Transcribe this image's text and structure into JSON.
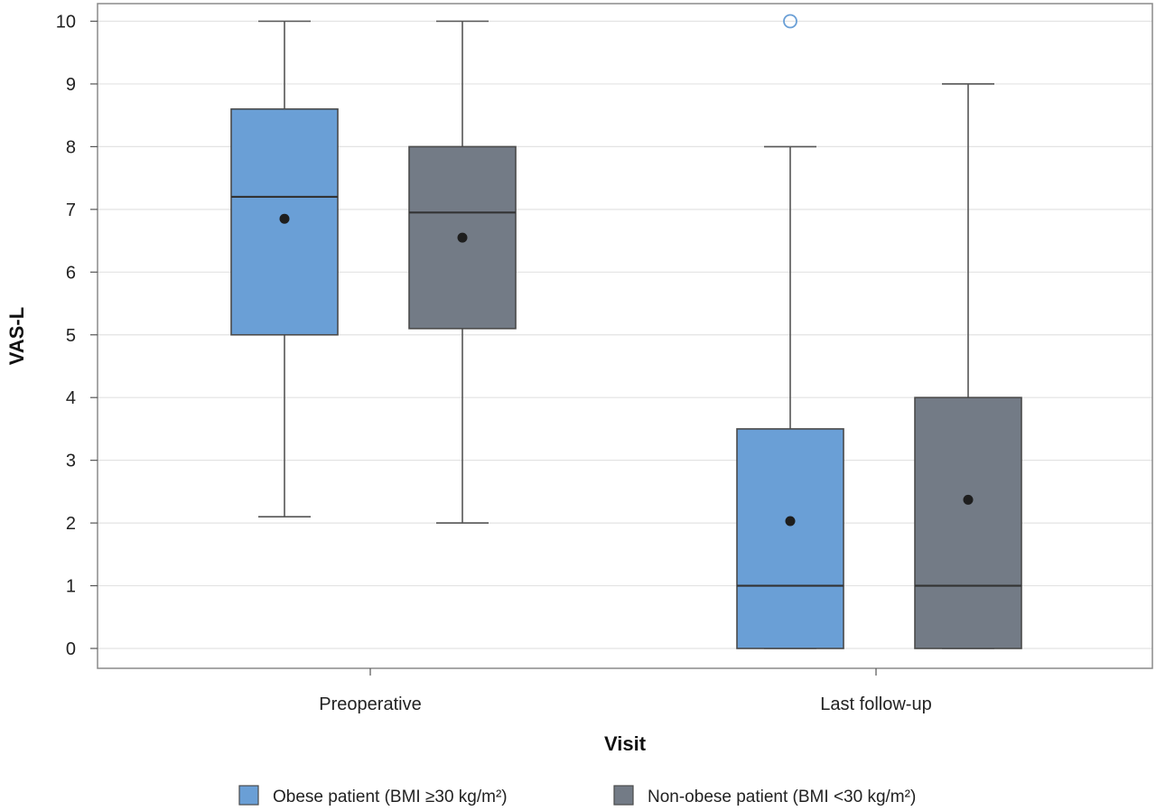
{
  "chart_data": {
    "type": "boxplot",
    "xlabel": "Visit",
    "ylabel": "VAS-L",
    "categories": [
      "Preoperative",
      "Last follow-up"
    ],
    "ylim": [
      0,
      10
    ],
    "yticks": [
      0,
      1,
      2,
      3,
      4,
      5,
      6,
      7,
      8,
      9,
      10
    ],
    "grid": true,
    "legend_placement": "bottom",
    "series": [
      {
        "name": "Obese patient (BMI ≥30 kg/m²)",
        "color": "#6a9fd6",
        "boxes": [
          {
            "category": "Preoperative",
            "min": 2.1,
            "q1": 5.0,
            "median": 7.2,
            "q3": 8.6,
            "max": 10,
            "mean": 6.85,
            "outliers": []
          },
          {
            "category": "Last follow-up",
            "min": 0,
            "q1": 0,
            "median": 1.0,
            "q3": 3.5,
            "max": 8,
            "mean": 2.03,
            "outliers": [
              10
            ]
          }
        ]
      },
      {
        "name": "Non-obese patient (BMI <30 kg/m²)",
        "color": "#737b86",
        "boxes": [
          {
            "category": "Preoperative",
            "min": 2.0,
            "q1": 5.1,
            "median": 6.95,
            "q3": 8.0,
            "max": 10,
            "mean": 6.55,
            "outliers": []
          },
          {
            "category": "Last follow-up",
            "min": 0,
            "q1": 0,
            "median": 1.0,
            "q3": 4.0,
            "max": 9,
            "mean": 2.37,
            "outliers": []
          }
        ]
      }
    ]
  }
}
